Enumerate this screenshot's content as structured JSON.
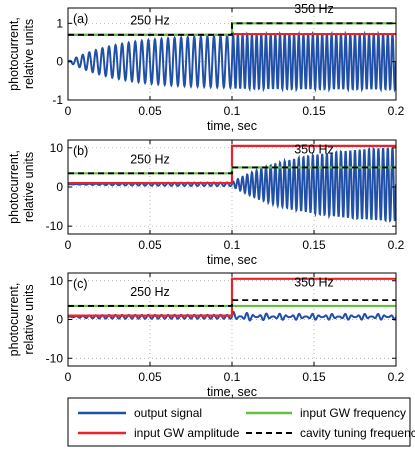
{
  "chart_data": {
    "type": "line",
    "panels": [
      {
        "label": "(a)",
        "ylabel": [
          "photocurrent,",
          "relative units"
        ],
        "xlabel": "time, sec",
        "xlim": [
          0,
          0.2
        ],
        "ylim": [
          -1,
          1.4
        ],
        "xticks": [
          0,
          0.05,
          0.1,
          0.15,
          0.2
        ],
        "xtick_labels": [
          "0",
          "0.05",
          "0.1",
          "0.15",
          "0.2"
        ],
        "yticks": [
          -1,
          0,
          1
        ],
        "ytick_labels": [
          "-1",
          "0",
          "1"
        ],
        "annotations": [
          {
            "text": "250 Hz",
            "x": 0.05,
            "y": 0.87
          },
          {
            "text": "350 Hz",
            "x": 0.15,
            "y": 1.17
          }
        ],
        "input_gw_amplitude": {
          "x": [
            0,
            0.1,
            0.1,
            0.2
          ],
          "y": [
            0.7,
            0.7,
            0.72,
            0.72
          ]
        },
        "input_gw_frequency": {
          "x": [
            0,
            0.1,
            0.1,
            0.2
          ],
          "y": [
            0.7,
            0.7,
            1.0,
            1.0
          ]
        },
        "cavity_tuning_frequency": {
          "x": [
            0,
            0.1,
            0.1,
            0.2
          ],
          "y": [
            0.7,
            0.7,
            1.0,
            1.0
          ]
        },
        "output_signal": {
          "center": 0,
          "amplitude_before": 0.7,
          "amplitude_after": 0.72,
          "rise_time": 0.03,
          "freq_before": 250,
          "freq_after": 350
        }
      },
      {
        "label": "(b)",
        "ylabel": [
          "photocurrent,",
          "relative units"
        ],
        "xlabel": "time, sec",
        "xlim": [
          0,
          0.2
        ],
        "ylim": [
          -12,
          12
        ],
        "xticks": [
          0,
          0.05,
          0.1,
          0.15,
          0.2
        ],
        "xtick_labels": [
          "0",
          "0.05",
          "0.1",
          "0.15",
          "0.2"
        ],
        "yticks": [
          -10,
          0,
          10
        ],
        "ytick_labels": [
          "-10",
          "0",
          "10"
        ],
        "annotations": [
          {
            "text": "250 Hz",
            "x": 0.05,
            "y": 5
          },
          {
            "text": "350 Hz",
            "x": 0.15,
            "y": 7.5
          }
        ],
        "input_gw_amplitude": {
          "x": [
            0,
            0.1,
            0.1,
            0.2
          ],
          "y": [
            1,
            1,
            10.5,
            10.5
          ]
        },
        "input_gw_frequency": {
          "x": [
            0,
            0.1,
            0.1,
            0.2
          ],
          "y": [
            3.5,
            3.5,
            5,
            5
          ]
        },
        "cavity_tuning_frequency": {
          "x": [
            0,
            0.1,
            0.1,
            0.2
          ],
          "y": [
            3.5,
            3.5,
            5,
            5
          ]
        },
        "output_signal": {
          "center": 0.7,
          "amplitude_before": 0.5,
          "amplitude_after": 10.2,
          "rise_time": 0.04,
          "freq_before": 250,
          "freq_after": 350
        }
      },
      {
        "label": "(c)",
        "ylabel": [
          "photocurrent,",
          "relative units"
        ],
        "xlabel": "time, sec",
        "xlim": [
          0,
          0.2
        ],
        "ylim": [
          -12,
          12
        ],
        "xticks": [
          0,
          0.05,
          0.1,
          0.15,
          0.2
        ],
        "xtick_labels": [
          "0",
          "0.05",
          "0.1",
          "0.15",
          "0.2"
        ],
        "yticks": [
          -10,
          0,
          10
        ],
        "ytick_labels": [
          "-10",
          "0",
          "10"
        ],
        "annotations": [
          {
            "text": "250 Hz",
            "x": 0.05,
            "y": 5
          },
          {
            "text": "350 Hz",
            "x": 0.15,
            "y": 7.5
          }
        ],
        "input_gw_amplitude": {
          "x": [
            0,
            0.1,
            0.1,
            0.2
          ],
          "y": [
            1,
            1,
            10.5,
            10.5
          ]
        },
        "input_gw_frequency": {
          "x": [
            0,
            0.1,
            0.1,
            0.2
          ],
          "y": [
            3.5,
            3.5,
            3.5,
            3.5
          ]
        },
        "cavity_tuning_frequency": {
          "x": [
            0,
            0.1,
            0.1,
            0.2
          ],
          "y": [
            3.5,
            3.5,
            5,
            5
          ]
        },
        "output_signal": {
          "center": 0.7,
          "amplitude_before": 0.5,
          "amplitude_after": 0.8,
          "rise_time": 0.005,
          "freq_before": 250,
          "freq_after": 250,
          "beat_freq": 100
        }
      }
    ],
    "legend": [
      {
        "label": "output signal",
        "color": "#2150a8",
        "style": "solid"
      },
      {
        "label": "input GW frequency",
        "color": "#63c13f",
        "style": "solid"
      },
      {
        "label": "input GW amplitude",
        "color": "#e8242a",
        "style": "solid"
      },
      {
        "label": "cavity tuning frequency",
        "color": "#000000",
        "style": "dashed"
      }
    ],
    "grid": true,
    "legend_placement": "bottom"
  },
  "colors": {
    "output_signal": "#2150a8",
    "input_gw_amplitude": "#e8242a",
    "input_gw_frequency": "#63c13f",
    "cavity_tuning_frequency": "#000000"
  }
}
